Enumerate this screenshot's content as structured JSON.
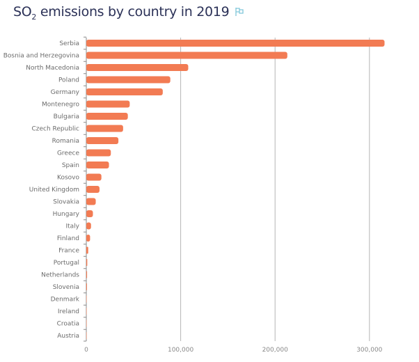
{
  "title": {
    "prefix": "SO",
    "subscript": "2",
    "suffix": " emissions by country in 2019",
    "icon": "flag-icon"
  },
  "colors": {
    "bar": "#f27b53",
    "title": "#2b3157",
    "icon": "#7fc6d9",
    "grid": "#b5b5b5"
  },
  "chart_data": {
    "type": "bar",
    "orientation": "horizontal",
    "title": "SO2 emissions by country in 2019",
    "categories": [
      "Serbia",
      "Bosnia and Herzegovina",
      "North Macedonia",
      "Poland",
      "Germany",
      "Montenegro",
      "Bulgaria",
      "Czech Republic",
      "Romania",
      "Greece",
      "Spain",
      "Kosovo",
      "United Kingdom",
      "Slovakia",
      "Hungary",
      "Italy",
      "Finland",
      "France",
      "Portugal",
      "Netherlands",
      "Slovenia",
      "Denmark",
      "Ireland",
      "Croatia",
      "Austria"
    ],
    "values": [
      316000,
      213000,
      108000,
      89000,
      81000,
      46000,
      44000,
      39000,
      34000,
      26000,
      24000,
      16000,
      14000,
      10000,
      7000,
      5000,
      4000,
      2000,
      1000,
      800,
      700,
      300,
      200,
      100,
      100
    ],
    "xlim": [
      0,
      320000
    ],
    "xticks": [
      0,
      100000,
      200000,
      300000
    ],
    "xtick_labels": [
      "0",
      "100,000",
      "200,000",
      "300,000"
    ],
    "grid": "vertical",
    "legend": "none"
  }
}
